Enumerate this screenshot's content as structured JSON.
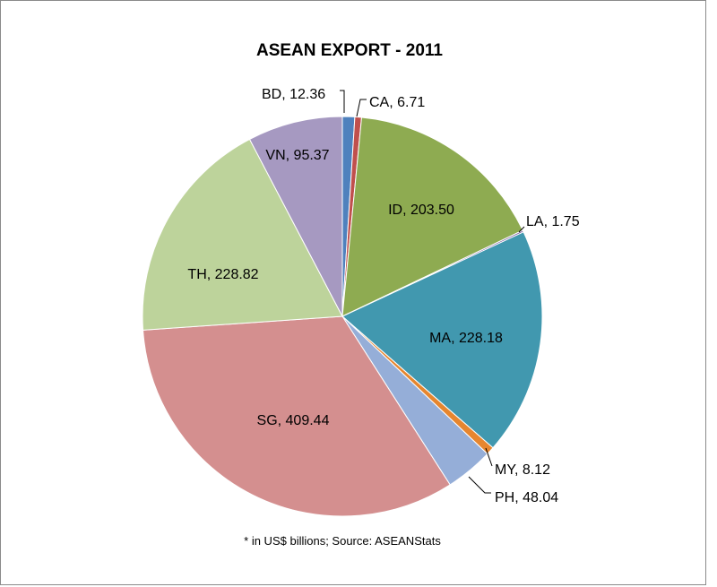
{
  "chart_data": {
    "type": "pie",
    "title": "ASEAN EXPORT - 2011",
    "footnote": "* in US$ billions; Source: ASEANStats",
    "slices": [
      {
        "label": "BD",
        "value": 12.36,
        "display": "BD, 12.36",
        "color": "#4f81bd"
      },
      {
        "label": "CA",
        "value": 6.71,
        "display": "CA, 6.71",
        "color": "#c0504d"
      },
      {
        "label": "ID",
        "value": 203.5,
        "display": "ID, 203.50",
        "color": "#8eab51"
      },
      {
        "label": "LA",
        "value": 1.75,
        "display": "LA, 1.75",
        "color": "#7a5fa0"
      },
      {
        "label": "MA",
        "value": 228.18,
        "display": "MA, 228.18",
        "color": "#4198af"
      },
      {
        "label": "MY",
        "value": 8.12,
        "display": "MY, 8.12",
        "color": "#e6862f"
      },
      {
        "label": "PH",
        "value": 48.04,
        "display": "PH, 48.04",
        "color": "#95aed8"
      },
      {
        "label": "SG",
        "value": 409.44,
        "display": "SG, 409.44",
        "color": "#d48f8f"
      },
      {
        "label": "TH",
        "value": 228.82,
        "display": "TH, 228.82",
        "color": "#bdd39b"
      },
      {
        "label": "VN",
        "value": 95.37,
        "display": "VN, 95.37",
        "color": "#a699c1"
      }
    ],
    "start": "12 o'clock, clockwise",
    "legend": "none"
  }
}
